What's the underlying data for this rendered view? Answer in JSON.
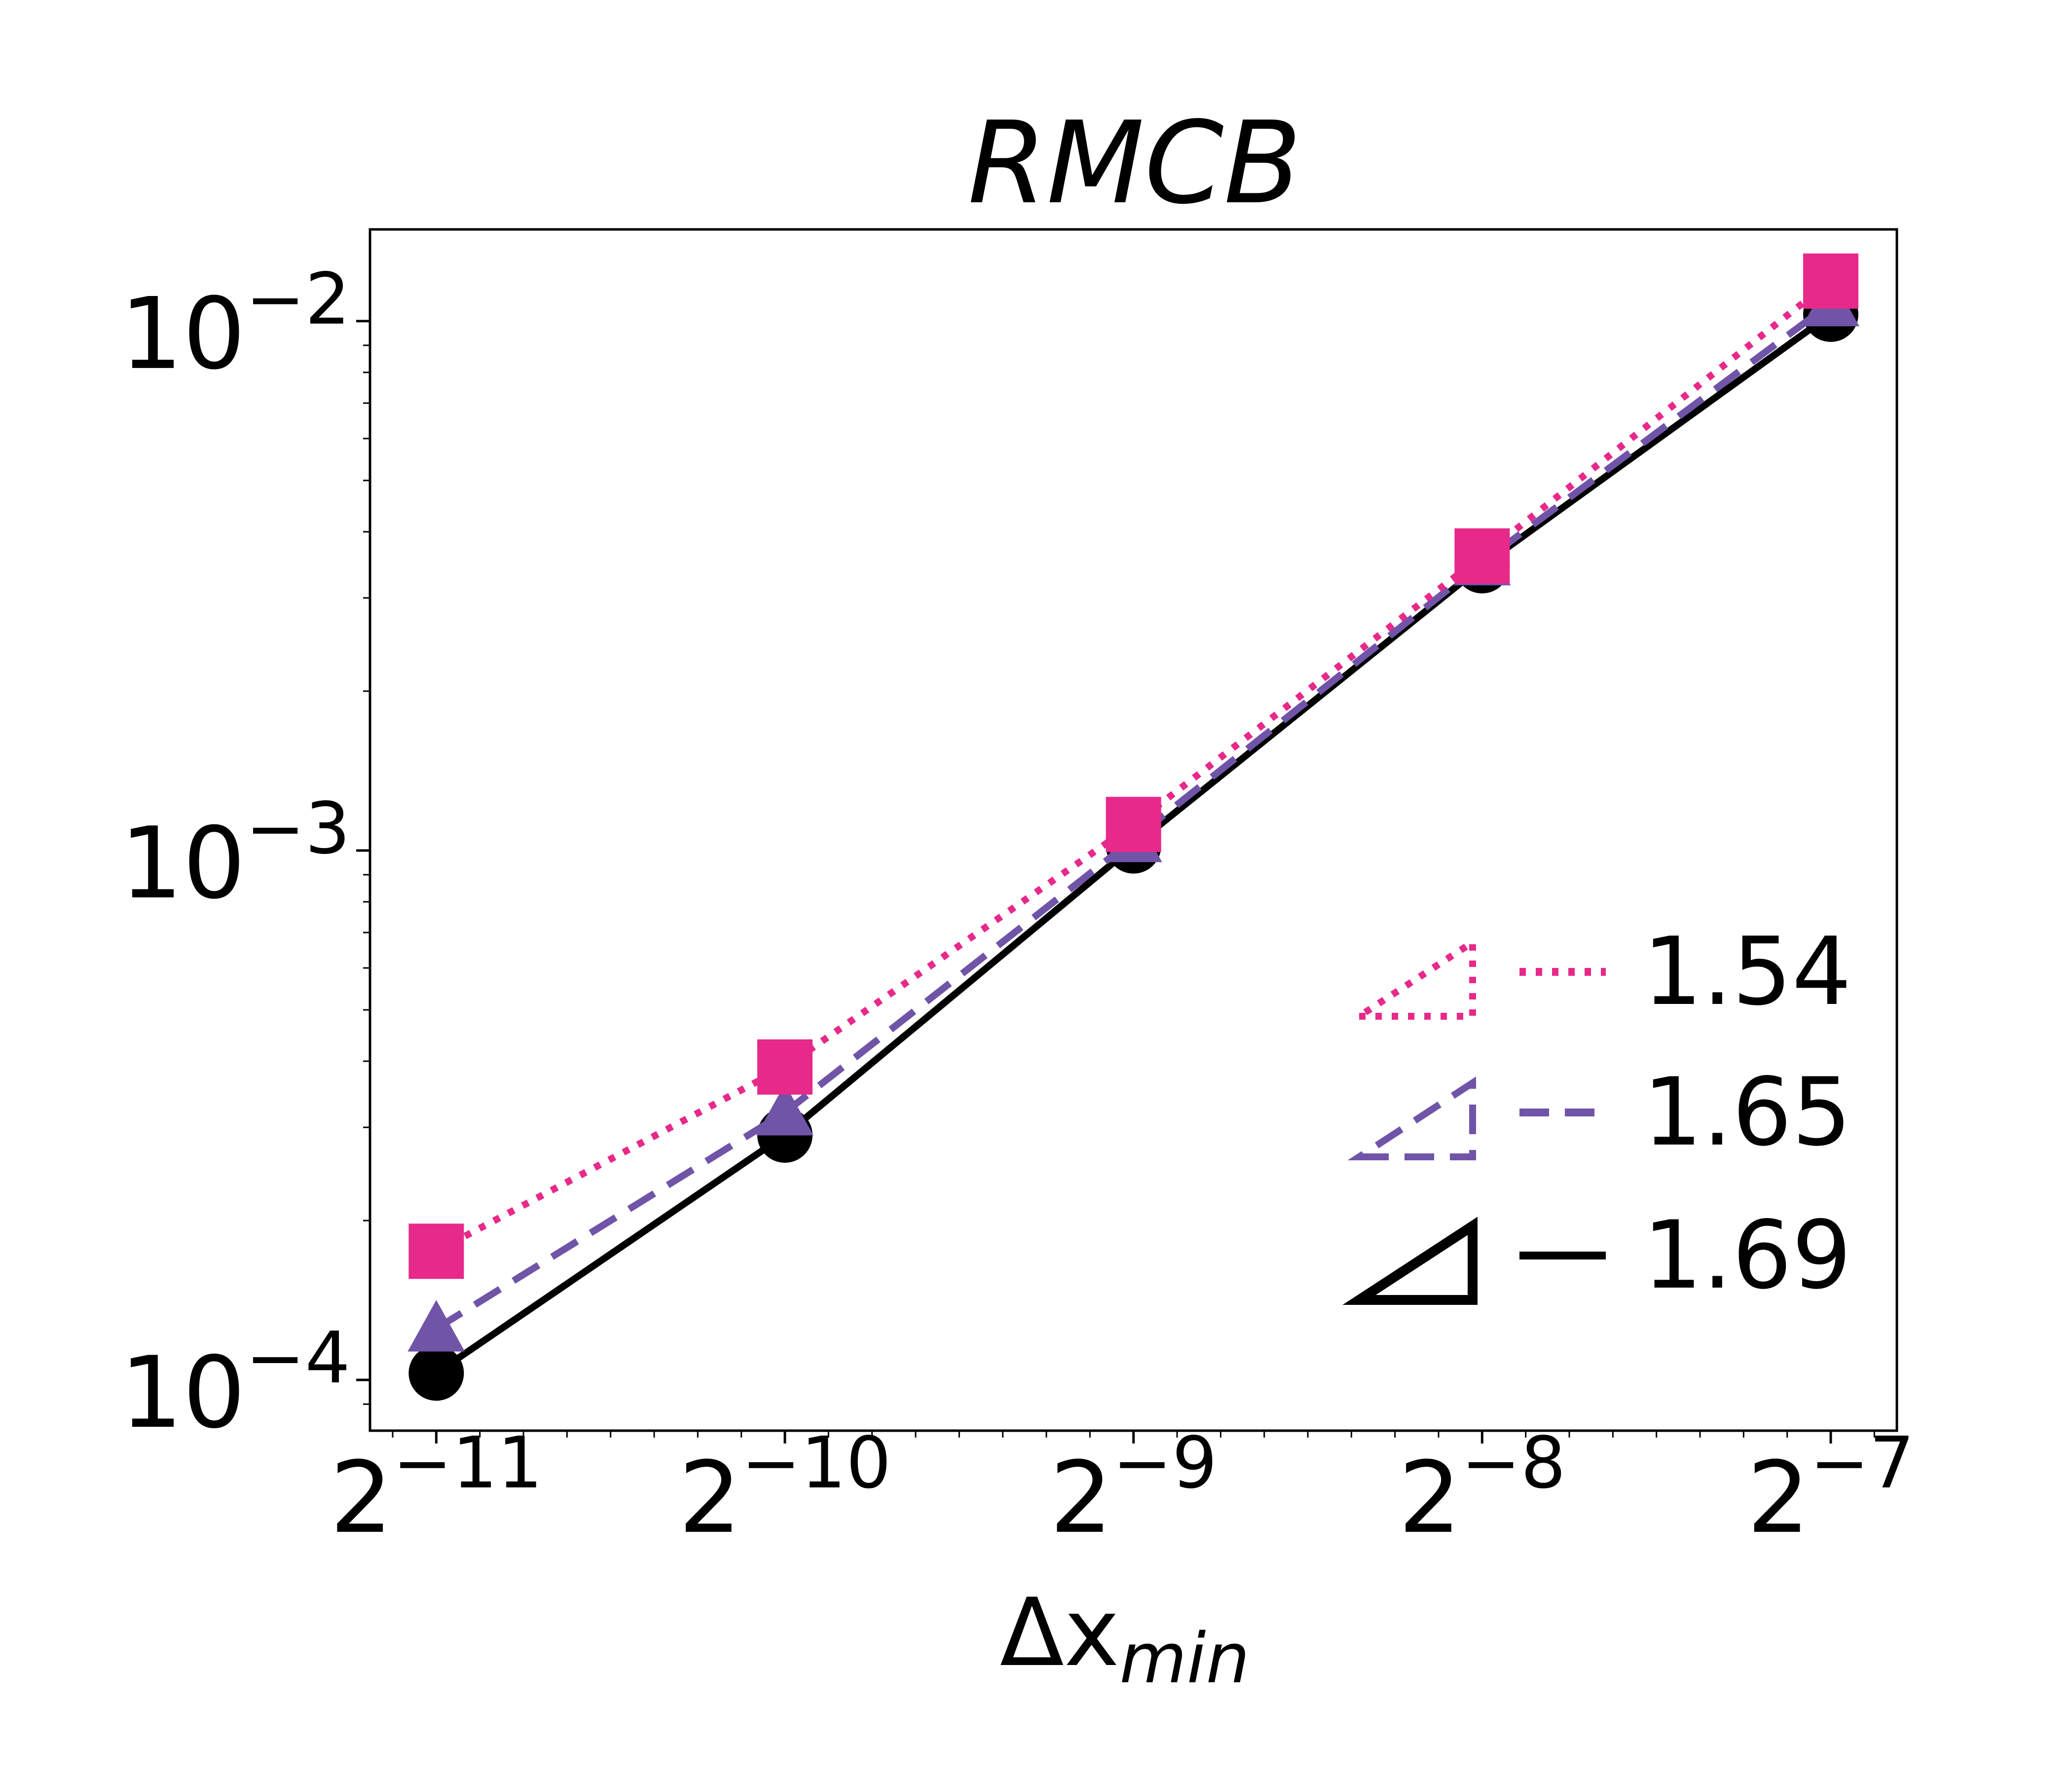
{
  "chart_data": {
    "type": "line",
    "title": "RMCB",
    "xlabel": {
      "main": "Δx",
      "subscript": "min"
    },
    "ylabel": "",
    "x_scale": "log2",
    "y_scale": "log10",
    "x": [
      0.00048828125,
      0.0009765625,
      0.001953125,
      0.00390625,
      0.0078125
    ],
    "xlim": [
      0.000428,
      0.00891
    ],
    "ylim": [
      8.02e-05,
      0.0149
    ],
    "x_ticks": [
      {
        "value": 0.00048828125,
        "base": "2",
        "exp": "−11"
      },
      {
        "value": 0.0009765625,
        "base": "2",
        "exp": "−10"
      },
      {
        "value": 0.001953125,
        "base": "2",
        "exp": "−9"
      },
      {
        "value": 0.00390625,
        "base": "2",
        "exp": "−8"
      },
      {
        "value": 0.0078125,
        "base": "2",
        "exp": "−7"
      }
    ],
    "y_ticks": [
      {
        "value": 0.0001,
        "base": "10",
        "exp": "−4"
      },
      {
        "value": 0.001,
        "base": "10",
        "exp": "−3"
      },
      {
        "value": 0.01,
        "base": "10",
        "exp": "−2"
      }
    ],
    "grid": false,
    "legend_position": "bottom-right",
    "series": [
      {
        "legend": "1.54",
        "color": "#e7298a",
        "dash": "dotted",
        "marker": "square",
        "values": [
          0.000175,
          0.00039,
          0.00112,
          0.0036,
          0.0119
        ]
      },
      {
        "legend": "1.65",
        "color": "#7054a8",
        "dash": "dashed",
        "marker": "triangle",
        "values": [
          0.000125,
          0.00032,
          0.00105,
          0.0035,
          0.0108
        ]
      },
      {
        "legend": "1.69",
        "color": "#000000",
        "dash": "solid",
        "marker": "circle",
        "values": [
          0.000103,
          0.00029,
          0.00102,
          0.00345,
          0.0103
        ]
      }
    ]
  }
}
